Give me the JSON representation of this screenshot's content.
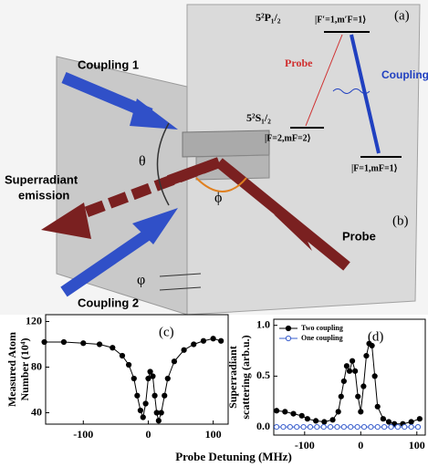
{
  "figure": {
    "panel_a": "(a)",
    "panel_b": "(b)",
    "level_p": "5²P₁/₂",
    "level_s": "5²S₁/₂",
    "state_excited": "|F′=1,m′F=1⟩",
    "state_initial": "|F=2,mF=2⟩",
    "state_final": "|F=1,mF=1⟩",
    "probe_a": "Probe",
    "coupling_a": "Coupling",
    "coupling1": "Coupling 1",
    "coupling2": "Coupling 2",
    "superradiant": [
      "Superradiant",
      "emission"
    ],
    "probe_b": "Probe",
    "theta": "θ",
    "phi_big": "ϕ",
    "phi_small": "φ",
    "xlabel": "Probe Detuning (MHz)"
  },
  "chart_data": [
    {
      "type": "line",
      "panel": "(c)",
      "ylabel": [
        "Measured Atom",
        "Number (10⁴)"
      ],
      "xlim": [
        -158,
        123
      ],
      "xticks": [
        -100,
        0,
        100
      ],
      "ylim": [
        30,
        126
      ],
      "yticks": [
        40,
        80,
        120
      ],
      "color": "#000000",
      "x": [
        -160,
        -130,
        -100,
        -75,
        -55,
        -40,
        -30,
        -22,
        -17,
        -12,
        -8,
        -4,
        0,
        3,
        7,
        10,
        13,
        16,
        20,
        25,
        30,
        40,
        55,
        70,
        85,
        100,
        112
      ],
      "values": [
        102,
        102,
        101,
        100,
        97,
        90,
        82,
        70,
        55,
        42,
        36,
        48,
        70,
        76,
        72,
        55,
        40,
        33,
        40,
        55,
        70,
        85,
        95,
        100,
        103,
        105,
        103
      ]
    },
    {
      "type": "line",
      "panel": "(d)",
      "ylabel": [
        "Superradiant",
        "scattering (arb.u.)"
      ],
      "xlim": [
        -155,
        115
      ],
      "xticks": [
        -100,
        0,
        100
      ],
      "ylim": [
        -0.08,
        1.06
      ],
      "yticks": [
        {
          "value": 0,
          "label": "0.0"
        },
        {
          "value": 0.5,
          "label": "0.5"
        },
        {
          "value": 1,
          "label": "1.0"
        }
      ],
      "legend": "upper left",
      "series": [
        {
          "name": "Two coupling",
          "color": "#000000",
          "filled": true,
          "x": [
            -150,
            -135,
            -120,
            -105,
            -95,
            -80,
            -65,
            -50,
            -40,
            -35,
            -30,
            -25,
            -20,
            -15,
            -10,
            -5,
            0,
            5,
            10,
            15,
            20,
            25,
            30,
            40,
            50,
            60,
            75,
            90,
            105
          ],
          "values": [
            0.16,
            0.15,
            0.13,
            0.11,
            0.08,
            0.06,
            0.05,
            0.07,
            0.15,
            0.3,
            0.45,
            0.6,
            0.55,
            0.65,
            0.55,
            0.3,
            0.15,
            0.4,
            0.7,
            0.82,
            0.8,
            0.5,
            0.2,
            0.08,
            0.05,
            0.03,
            0.03,
            0.05,
            0.08
          ]
        },
        {
          "name": "One coupling",
          "color": "#3a5fcd",
          "filled": false,
          "x": [
            -150,
            -138,
            -126,
            -114,
            -102,
            -90,
            -78,
            -66,
            -54,
            -42,
            -30,
            -18,
            -6,
            6,
            18,
            30,
            42,
            54,
            66,
            78,
            90,
            102
          ],
          "values": [
            0,
            0,
            0,
            0,
            0,
            0,
            0,
            0,
            0,
            0,
            0,
            0,
            0,
            0,
            0,
            0,
            0,
            0,
            0,
            0,
            0,
            0
          ]
        }
      ]
    }
  ]
}
